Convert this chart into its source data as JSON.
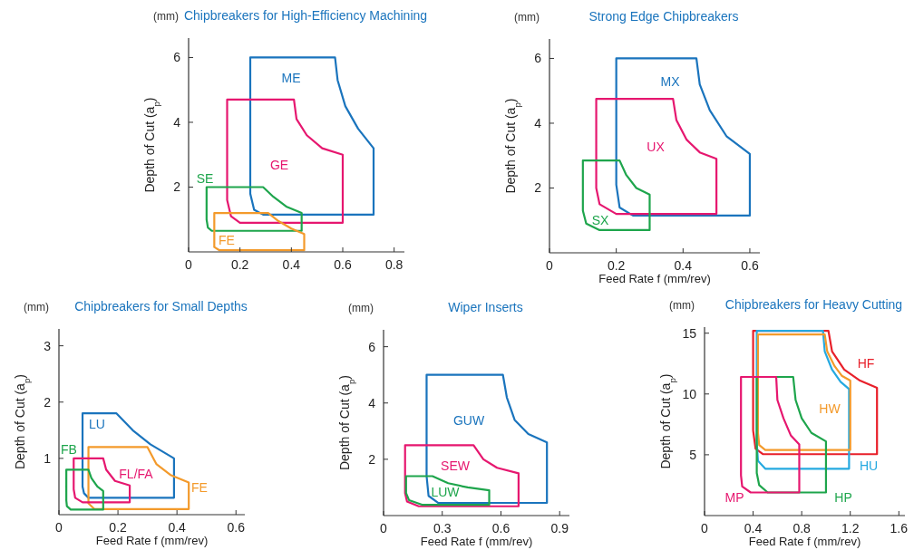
{
  "chart_data": [
    {
      "type": "line",
      "title": "Chipbreakers for High-Efficiency Machining",
      "ylabel": "Depth of Cut (a$_{p}$)",
      "xlim": [
        0,
        0.84
      ],
      "ylim": [
        0,
        6.6
      ],
      "xticks": [
        0,
        0.2,
        0.4,
        0.6,
        0.8
      ],
      "yticks": [
        2,
        4,
        6
      ],
      "legend": false,
      "grid": false,
      "marker": "none",
      "line_style": "solid",
      "annotations": [
        "(mm)"
      ],
      "series": [
        {
          "name": "ME",
          "color": "#1a74bd",
          "x": [
            0.24,
            0.24,
            0.57,
            0.58,
            0.61,
            0.66,
            0.72,
            0.72,
            null,
            0.24,
            0.255,
            0.29,
            0.72
          ],
          "values": [
            1.8,
            6,
            6,
            5.3,
            4.5,
            3.8,
            3.2,
            1.15,
            null,
            1.8,
            1.3,
            1.15,
            1.15
          ]
        },
        {
          "name": "GE",
          "color": "#e6176f",
          "x": [
            0.15,
            0.15,
            0.41,
            0.42,
            0.46,
            0.52,
            0.6,
            0.6,
            null,
            0.15,
            0.165,
            0.2,
            0.6
          ],
          "values": [
            1.6,
            4.7,
            4.7,
            4.1,
            3.6,
            3.2,
            3.0,
            0.9,
            null,
            1.6,
            1.1,
            0.9,
            0.9
          ]
        },
        {
          "name": "SE",
          "color": "#1ea54c",
          "x": [
            0.07,
            0.07,
            0.29,
            0.33,
            0.38,
            0.44,
            0.44,
            null,
            0.07,
            0.075,
            0.09,
            0.44
          ],
          "values": [
            1.0,
            2,
            2,
            1.7,
            1.4,
            1.2,
            0.65,
            null,
            1.0,
            0.75,
            0.65,
            0.65
          ]
        },
        {
          "name": "FE",
          "color": "#f39a2b",
          "x": [
            0.1,
            0.1,
            0.31,
            0.35,
            0.4,
            0.45,
            0.45,
            null,
            0.1,
            0.12,
            0.45
          ],
          "values": [
            0.15,
            1.2,
            1.2,
            0.95,
            0.72,
            0.55,
            0.05,
            null,
            0.15,
            0.05,
            0.05
          ]
        }
      ]
    },
    {
      "type": "line",
      "title": "Strong Edge Chipbreakers",
      "xlabel": "Feed Rate f (mm/rev)",
      "ylabel": "Depth of Cut (a$_{p}$)",
      "xlim": [
        0,
        0.63
      ],
      "ylim": [
        0,
        6.6
      ],
      "xticks": [
        0,
        0.2,
        0.4,
        0.6
      ],
      "yticks": [
        2,
        4,
        6
      ],
      "legend": false,
      "grid": false,
      "marker": "none",
      "line_style": "solid",
      "annotations": [
        "(mm)"
      ],
      "series": [
        {
          "name": "MX",
          "color": "#1a74bd",
          "x": [
            0.2,
            0.2,
            0.44,
            0.45,
            0.48,
            0.53,
            0.6,
            0.6,
            null,
            0.2,
            0.21,
            0.25,
            0.6
          ],
          "values": [
            2.1,
            6,
            6,
            5.2,
            4.4,
            3.6,
            3.05,
            1.15,
            null,
            2.1,
            1.4,
            1.15,
            1.15
          ]
        },
        {
          "name": "UX",
          "color": "#e6176f",
          "x": [
            0.14,
            0.14,
            0.37,
            0.38,
            0.41,
            0.45,
            0.5,
            0.5,
            null,
            0.14,
            0.15,
            0.2,
            0.5
          ],
          "values": [
            2.0,
            4.75,
            4.75,
            4.1,
            3.5,
            3.1,
            2.9,
            1.2,
            null,
            2.0,
            1.5,
            1.2,
            1.2
          ]
        },
        {
          "name": "SX",
          "color": "#1ea54c",
          "x": [
            0.1,
            0.1,
            0.21,
            0.23,
            0.26,
            0.3,
            0.3,
            null,
            0.1,
            0.11,
            0.15,
            0.3
          ],
          "values": [
            1.3,
            2.85,
            2.85,
            2.4,
            2.0,
            1.8,
            0.7,
            null,
            1.3,
            0.9,
            0.7,
            0.7
          ]
        }
      ]
    },
    {
      "type": "line",
      "title": "Chipbreakers for Small Depths",
      "xlabel": "Feed Rate f (mm/rev)",
      "ylabel": "Depth of Cut (a$_{p}$)",
      "xlim": [
        0,
        0.63
      ],
      "ylim": [
        0,
        3.3
      ],
      "xticks": [
        0,
        0.2,
        0.4,
        0.6
      ],
      "yticks": [
        1,
        2,
        3
      ],
      "legend": false,
      "grid": false,
      "marker": "none",
      "line_style": "solid",
      "annotations": [
        "(mm)"
      ],
      "series": [
        {
          "name": "LU",
          "color": "#1a74bd",
          "x": [
            0.08,
            0.08,
            0.195,
            0.25,
            0.31,
            0.39,
            0.39,
            null,
            0.08,
            0.085,
            0.1,
            0.39
          ],
          "values": [
            0.5,
            1.8,
            1.8,
            1.5,
            1.25,
            1.0,
            0.3,
            null,
            0.5,
            0.38,
            0.3,
            0.3
          ]
        },
        {
          "name": "FE",
          "color": "#f39a2b",
          "x": [
            0.1,
            0.1,
            0.3,
            0.33,
            0.38,
            0.44,
            0.44,
            null,
            0.1,
            0.12,
            0.44
          ],
          "values": [
            0.2,
            1.2,
            1.2,
            0.9,
            0.7,
            0.57,
            0.1,
            null,
            0.2,
            0.1,
            0.1
          ]
        },
        {
          "name": "FL/FA",
          "color": "#e6176f",
          "x": [
            0.05,
            0.05,
            0.15,
            0.16,
            0.19,
            0.24,
            0.24,
            null,
            0.05,
            0.055,
            0.08,
            0.24
          ],
          "values": [
            0.45,
            1.0,
            1.0,
            0.8,
            0.6,
            0.52,
            0.22,
            null,
            0.45,
            0.3,
            0.22,
            0.22
          ]
        },
        {
          "name": "FB",
          "color": "#1ea54c",
          "x": [
            0.025,
            0.025,
            0.1,
            0.11,
            0.13,
            0.15,
            0.15,
            null,
            0.025,
            0.027,
            0.04,
            0.15
          ],
          "values": [
            0.25,
            0.8,
            0.8,
            0.65,
            0.5,
            0.42,
            0.09,
            null,
            0.25,
            0.15,
            0.09,
            0.09
          ]
        }
      ]
    },
    {
      "type": "line",
      "title": "Wiper Inserts",
      "xlabel": "Feed Rate f (mm/rev)",
      "ylabel": "Depth of Cut (a$_{p}$)",
      "xlim": [
        0,
        0.95
      ],
      "ylim": [
        0,
        6.6
      ],
      "xticks": [
        0,
        0.3,
        0.6,
        0.9
      ],
      "yticks": [
        2,
        4,
        6
      ],
      "legend": false,
      "grid": false,
      "marker": "none",
      "line_style": "solid",
      "annotations": [
        "(mm)"
      ],
      "series": [
        {
          "name": "GUW",
          "color": "#1a74bd",
          "x": [
            0.22,
            0.22,
            0.61,
            0.63,
            0.67,
            0.74,
            0.835,
            0.835,
            null,
            0.22,
            0.23,
            0.28,
            0.835
          ],
          "values": [
            1.4,
            5,
            5,
            4.2,
            3.4,
            2.9,
            2.6,
            0.45,
            null,
            1.4,
            0.7,
            0.45,
            0.45
          ]
        },
        {
          "name": "SEW",
          "color": "#e6176f",
          "x": [
            0.11,
            0.11,
            0.46,
            0.51,
            0.58,
            0.69,
            0.69,
            null,
            0.11,
            0.12,
            0.18,
            0.69
          ],
          "values": [
            0.8,
            2.5,
            2.5,
            2.0,
            1.7,
            1.5,
            0.33,
            null,
            0.8,
            0.5,
            0.33,
            0.33
          ]
        },
        {
          "name": "LUW",
          "color": "#1ea54c",
          "x": [
            0.115,
            0.115,
            0.25,
            0.33,
            0.43,
            0.54,
            0.54,
            null,
            0.115,
            0.13,
            0.2,
            0.54
          ],
          "values": [
            0.8,
            1.4,
            1.4,
            1.15,
            1.0,
            0.9,
            0.38,
            null,
            0.8,
            0.55,
            0.38,
            0.38
          ]
        }
      ]
    },
    {
      "type": "line",
      "title": "Chipbreakers for Heavy Cutting",
      "xlabel": "Feed Rate f (mm/rev)",
      "ylabel": "Depth of Cut (a$_{p}$)",
      "xlim": [
        0,
        1.65
      ],
      "ylim": [
        0,
        15.5
      ],
      "xticks": [
        0,
        0.4,
        0.8,
        1.2,
        1.6
      ],
      "yticks": [
        5,
        10,
        15
      ],
      "legend": false,
      "grid": false,
      "marker": "none",
      "line_style": "solid",
      "annotations": [
        "(mm)"
      ],
      "series": [
        {
          "name": "HF",
          "color": "#e8202a",
          "x": [
            0.4,
            0.4,
            1.02,
            1.05,
            1.15,
            1.28,
            1.42,
            1.42,
            null,
            0.4,
            0.42,
            0.48,
            1.42
          ],
          "values": [
            7.0,
            15.2,
            15.2,
            13.5,
            12,
            11.1,
            10.5,
            5.05,
            null,
            7.0,
            5.5,
            5.05,
            5.05
          ]
        },
        {
          "name": "HU",
          "color": "#25a9e0",
          "x": [
            0.43,
            0.43,
            0.975,
            0.99,
            1.05,
            1.12,
            1.19,
            1.19,
            null,
            0.43,
            0.44,
            0.5,
            1.19
          ],
          "values": [
            6,
            15.2,
            15.2,
            13.5,
            12,
            11,
            10.4,
            3.85,
            null,
            6,
            4.5,
            3.85,
            3.85
          ]
        },
        {
          "name": "HW",
          "color": "#f39a2b",
          "x": [
            0.44,
            0.44,
            0.99,
            1.01,
            1.07,
            1.13,
            1.2,
            1.2,
            null,
            0.44,
            0.45,
            0.5,
            1.2
          ],
          "values": [
            6.8,
            14.9,
            14.9,
            13.5,
            12.3,
            11.5,
            11.1,
            5.4,
            null,
            6.8,
            5.8,
            5.4,
            5.4
          ]
        },
        {
          "name": "HP",
          "color": "#1ea54c",
          "x": [
            0.43,
            0.43,
            0.73,
            0.75,
            0.8,
            0.88,
            1.0,
            1.0,
            null,
            0.43,
            0.45,
            0.52,
            1.0
          ],
          "values": [
            3.5,
            11.4,
            11.4,
            9.5,
            8.0,
            6.8,
            6.1,
            1.9,
            null,
            3.5,
            2.5,
            1.9,
            1.9
          ]
        },
        {
          "name": "MP",
          "color": "#e6176f",
          "x": [
            0.3,
            0.3,
            0.59,
            0.6,
            0.65,
            0.71,
            0.78,
            0.78,
            null,
            0.3,
            0.31,
            0.38,
            0.78
          ],
          "values": [
            3.3,
            11.4,
            11.4,
            9.5,
            8,
            6.6,
            5.85,
            1.9,
            null,
            3.3,
            2.4,
            1.9,
            1.9
          ]
        }
      ]
    }
  ]
}
